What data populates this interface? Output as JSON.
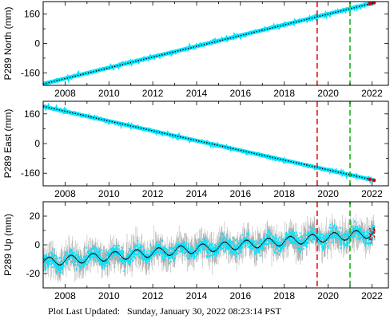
{
  "footer": {
    "label": "Plot Last Updated:",
    "timestamp": "Sunday, January 30, 2022 08:23:14 PST"
  },
  "colors": {
    "data": "#00e5ff",
    "error_bars": "#b4b4b4",
    "trend": "#000000",
    "recent": "#d40000",
    "event_red": "#e01010",
    "event_green": "#20b020"
  },
  "chart_data": [
    {
      "type": "scatter",
      "ylabel": "P289 North (mm)",
      "xlim": [
        2007.0,
        2022.75
      ],
      "ylim": [
        -228,
        228
      ],
      "x_ticks": [
        2008,
        2010,
        2012,
        2014,
        2016,
        2018,
        2020,
        2022
      ],
      "y_ticks": [
        -160,
        0,
        160
      ],
      "trend": {
        "x": [
          2007.0,
          2022.1
        ],
        "y": [
          -220,
          222
        ]
      },
      "vlines": [
        {
          "x": 2019.5,
          "color": "red",
          "style": "dashed"
        },
        {
          "x": 2021.0,
          "color": "green",
          "style": "dashed"
        }
      ],
      "recent_points_x": [
        2021.9,
        2022.1
      ]
    },
    {
      "type": "scatter",
      "ylabel": "P289 East (mm)",
      "xlim": [
        2007.0,
        2022.75
      ],
      "ylim": [
        -228,
        228
      ],
      "x_ticks": [
        2008,
        2010,
        2012,
        2014,
        2016,
        2018,
        2020,
        2022
      ],
      "y_ticks": [
        -160,
        0,
        160
      ],
      "trend": {
        "x": [
          2007.0,
          2022.1
        ],
        "y": [
          200,
          -198
        ]
      },
      "vlines": [
        {
          "x": 2019.5,
          "color": "red",
          "style": "dashed"
        },
        {
          "x": 2021.0,
          "color": "green",
          "style": "dashed"
        }
      ],
      "recent_points_x": [
        2021.9,
        2022.1
      ]
    },
    {
      "type": "scatter",
      "ylabel": "P289 Up (mm)",
      "xlim": [
        2007.0,
        2022.75
      ],
      "ylim": [
        -30,
        30
      ],
      "x_ticks": [
        2008,
        2010,
        2012,
        2014,
        2016,
        2018,
        2020,
        2022
      ],
      "y_ticks": [
        -20,
        0,
        20
      ],
      "trend_linear": {
        "x": [
          2007.0,
          2022.1
        ],
        "y": [
          -12,
          8
        ]
      },
      "seasonal_amplitude": 3,
      "scatter_spread": 6,
      "error_bar": 7,
      "vlines": [
        {
          "x": 2019.5,
          "color": "red",
          "style": "dashed"
        },
        {
          "x": 2021.0,
          "color": "green",
          "style": "dashed"
        }
      ],
      "recent_points_x": [
        2021.85,
        2022.1
      ]
    }
  ]
}
